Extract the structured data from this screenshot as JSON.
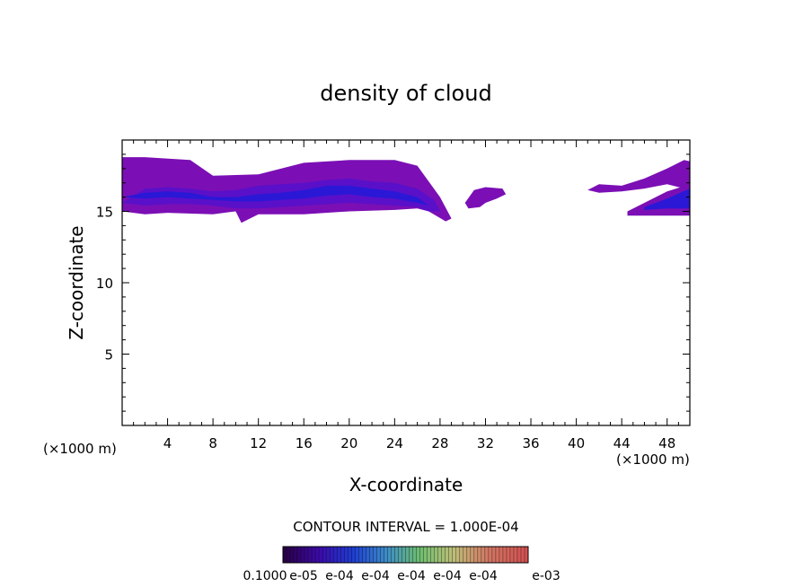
{
  "chart_data": {
    "type": "heatmap",
    "title": "density of cloud",
    "xlabel": "X-coordinate",
    "ylabel": "Z-coordinate",
    "x_unit": "(×1000 m)",
    "z_unit": "(×1000 m)",
    "xlim": [
      0,
      50
    ],
    "ylim": [
      0,
      20
    ],
    "x_ticks": [
      4,
      8,
      12,
      16,
      20,
      24,
      28,
      32,
      36,
      40,
      44,
      48
    ],
    "y_ticks": [
      5,
      10,
      15
    ],
    "contour_interval": "CONTOUR INTERVAL = 1.000E-04",
    "colorbar_labels": [
      "0.1000",
      "e-05",
      "e-04",
      "e-04",
      "e-04",
      "e-04",
      "e-04",
      "e-03"
    ],
    "colors": {
      "outer": "#7b0fb5",
      "mid": "#5a10c8",
      "inner": "#2a18d6",
      "core": "#1030e8"
    },
    "regions": [
      {
        "name": "main-cloud-outer",
        "level": 1,
        "x": [
          0,
          0,
          2,
          6,
          8,
          12,
          16,
          20,
          24,
          26,
          28,
          29,
          28.5,
          27,
          26,
          24,
          20,
          16,
          12,
          10.5,
          10,
          8,
          4,
          2,
          0
        ],
        "z": [
          15,
          18.8,
          18.8,
          18.6,
          17.5,
          17.6,
          18.4,
          18.6,
          18.6,
          18.2,
          16.0,
          14.5,
          14.3,
          15.0,
          15.2,
          15.1,
          15.0,
          14.8,
          14.8,
          14.2,
          15.0,
          14.8,
          14.9,
          14.8,
          15
        ]
      },
      {
        "name": "main-cloud-mid",
        "level": 2,
        "x": [
          0,
          2,
          4,
          6,
          8,
          10,
          12,
          14,
          16,
          18,
          20,
          22,
          24,
          26,
          27.5,
          28,
          27,
          26,
          24,
          22,
          20,
          18,
          16,
          14,
          12,
          10,
          8,
          6,
          4,
          2,
          0
        ],
        "z": [
          15.6,
          16.6,
          16.7,
          16.6,
          16.4,
          16.5,
          16.8,
          16.9,
          17.0,
          17.2,
          17.3,
          17.1,
          17.0,
          16.6,
          15.8,
          15.0,
          15.0,
          15.3,
          15.4,
          15.5,
          15.6,
          15.5,
          15.4,
          15.3,
          15.2,
          15.2,
          15.4,
          15.5,
          15.5,
          15.4,
          15.6
        ]
      },
      {
        "name": "main-cloud-inner",
        "level": 3,
        "x": [
          0,
          2,
          4,
          6,
          8,
          10,
          12,
          14,
          16,
          18,
          20,
          22,
          24,
          26,
          27,
          26,
          24,
          22,
          20,
          18,
          16,
          14,
          12,
          10,
          8,
          6,
          4,
          2,
          0
        ],
        "z": [
          16.0,
          16.3,
          16.4,
          16.3,
          16.0,
          16.0,
          16.2,
          16.3,
          16.5,
          16.8,
          16.8,
          16.6,
          16.4,
          16.0,
          15.4,
          15.6,
          15.9,
          16.0,
          16.2,
          16.1,
          15.9,
          15.8,
          15.7,
          15.7,
          15.8,
          15.9,
          16.0,
          15.9,
          16.0
        ]
      },
      {
        "name": "small-cloud",
        "level": 1,
        "x": [
          30.2,
          31,
          32,
          33.5,
          33.8,
          33,
          32,
          31.5,
          30.5,
          30.2
        ],
        "z": [
          15.6,
          16.5,
          16.7,
          16.6,
          16.2,
          15.9,
          15.6,
          15.3,
          15.2,
          15.6
        ]
      },
      {
        "name": "right-cloud-upper",
        "level": 1,
        "x": [
          41,
          42,
          44,
          46,
          48,
          49.5,
          50,
          50,
          48,
          46,
          44,
          42,
          41
        ],
        "z": [
          16.5,
          16.9,
          16.8,
          17.3,
          18.0,
          18.6,
          18.5,
          16.5,
          16.9,
          16.6,
          16.4,
          16.3,
          16.5
        ]
      },
      {
        "name": "right-cloud-lower",
        "level": 1,
        "x": [
          44.5,
          46,
          48,
          50,
          50,
          48,
          46,
          44.5
        ],
        "z": [
          15.0,
          15.6,
          16.4,
          16.9,
          14.7,
          14.7,
          14.7,
          14.7
        ]
      },
      {
        "name": "right-cloud-core",
        "level": 3,
        "x": [
          46,
          48,
          50,
          50,
          48,
          46
        ],
        "z": [
          15.3,
          15.9,
          16.6,
          15.2,
          15.2,
          15.1
        ]
      }
    ]
  }
}
